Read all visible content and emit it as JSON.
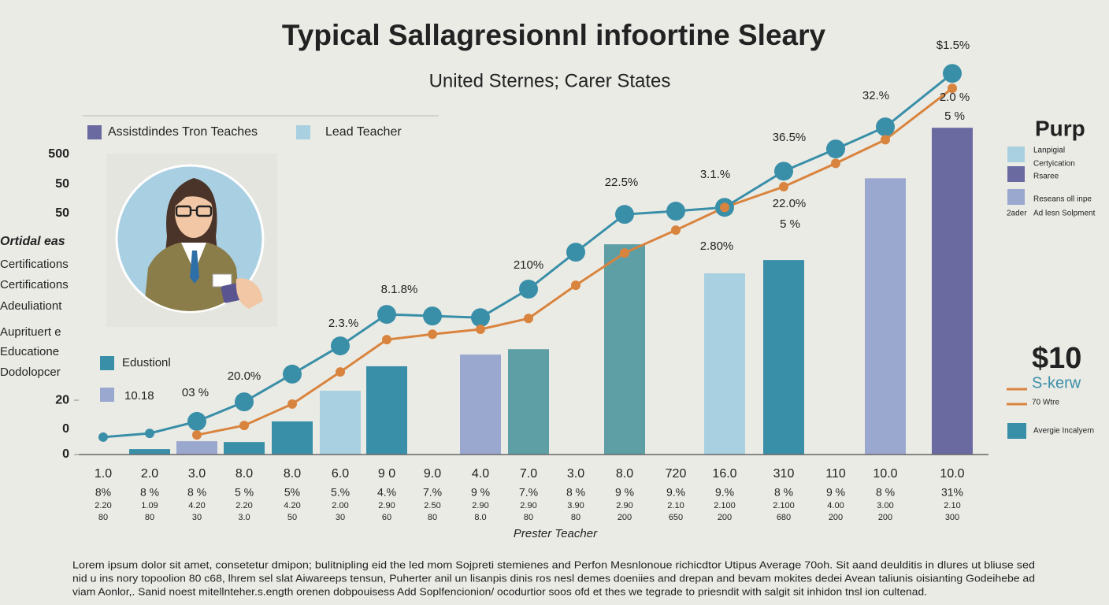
{
  "chart_data": {
    "type": "bar",
    "title": "Typical Sallagresionnl infoortine Sleary",
    "subtitle": "United Sternes; Carer States",
    "legend": [
      {
        "label": "Assistdindes Tron Teaches",
        "color": "#6a6aa0"
      },
      {
        "label": "Lead Teacher",
        "color": "#a9d0e0"
      }
    ],
    "side_labels": [
      "500",
      "50",
      "50",
      "Ortidal eas",
      "Certifications",
      "Certifications",
      "Adeuliationt",
      "Auprituert e",
      "Educatione",
      "Dodolopcer",
      "0"
    ],
    "inset_legend": [
      {
        "label": "Edustionl",
        "color": "#3a8fa8"
      },
      {
        "label": "10.18",
        "color": "#9aa7cf"
      }
    ],
    "annotations": [
      "03 %",
      "20.0%",
      "2.3.%",
      "8.1.8%",
      "210%",
      "22.5%",
      "3.1.%",
      "2.80%",
      "36.5%",
      "22.0%",
      "5 %",
      "32.%",
      "$1.5%",
      "2.0 %",
      "5 %"
    ],
    "categories": [
      "1.0",
      "2.0",
      "3.0",
      "8.0",
      "8.0",
      "6.0",
      "9 0",
      "9.0",
      "4.0",
      "7.0",
      "3.0",
      "8.0",
      "720",
      "16.0",
      "310",
      "110",
      "10.0",
      "10.0"
    ],
    "category_rows": [
      [
        "8%",
        "8 %",
        "8 %",
        "5 %",
        "5%",
        "5.%",
        "4.%",
        "7.%",
        "9 %",
        "7.%",
        "8 %",
        "9 %",
        "9.%",
        "9.%",
        "8 %",
        "9 %",
        "8 %",
        "31%"
      ],
      [
        "2.20",
        "1.09",
        "4.20",
        "2.20",
        "4.20",
        "2.00",
        "2.90",
        "2.50",
        "2.90",
        "2.90",
        "3.90",
        "2.90",
        "2.10",
        "2.100",
        "2.100",
        "4.00",
        "3.00",
        "2.10"
      ],
      [
        "80",
        "80",
        "30",
        "3.0",
        "50",
        "30",
        "60",
        "80",
        "8.0",
        "80",
        "80",
        "200",
        "650",
        "200",
        "680",
        "200",
        "200",
        "300"
      ]
    ],
    "x_label": "Prester Teacher",
    "values": [
      null,
      2.0,
      4.9,
      4.6,
      12.2,
      23.5,
      32.5,
      null,
      36.8,
      38.8,
      null,
      77.4,
      null,
      66.7,
      71.6,
      null,
      101.7,
      120.3
    ],
    "bar_colors": [
      null,
      "#3a8fa8",
      "#9aa7cf",
      "#3a8fa8",
      "#3a8fa8",
      "#a9d0e0",
      "#3a8fa8",
      null,
      "#9aa7cf",
      "#5e9fa6",
      null,
      "#5e9fa6",
      null,
      "#a9d0e0",
      "#3a8fa8",
      null,
      "#9aa7cf",
      "#6a6aa0"
    ],
    "lines": [
      {
        "color": "#3a8fa8",
        "values": [
          6.4,
          7.8,
          12.2,
          19.4,
          29.6,
          40.0,
          51.6,
          51.0,
          50.4,
          60.9,
          74.5,
          88.4,
          89.6,
          91.0,
          104.3,
          112.5,
          120.6,
          140.3
        ]
      },
      {
        "color": "#d9843e",
        "values": [
          null,
          null,
          7.2,
          10.7,
          18.6,
          30.4,
          42.3,
          44.3,
          46.1,
          50.1,
          62.3,
          74.2,
          82.6,
          91.0,
          98.6,
          107.2,
          115.9,
          134.8
        ]
      }
    ],
    "ylim": [
      0,
      145
    ],
    "yticks": [
      0,
      20
    ],
    "right_panel": {
      "heading": "Purp",
      "items": [
        {
          "color": "#a9d0e0",
          "texts": [
            "Lanpigial",
            "Certyication",
            "Rsaree"
          ]
        },
        {
          "color": "#6a6aa0",
          "texts": []
        },
        {
          "color": "#9aa7cf",
          "texts": [
            "Reseans oll inpe",
            "2ader",
            "Ad lesn Solpment"
          ]
        }
      ],
      "big_value": "$10",
      "sub": "S-kerw",
      "line_items": [
        {
          "color": "#d9843e",
          "label": null
        },
        {
          "color": "#d9843e",
          "label": "70 Wtre"
        }
      ],
      "last_item": {
        "color": "#3a8fa8",
        "label": "Avergie Incalyern"
      }
    },
    "footer": [
      "Lorem ipsum  dolor sit amet, consetetur dmipon; bulitnipling eid the led mom Sojpreti stemienes and Perfon Mesnlonoue richicdtor Utipus Average 70oh. Sit aand deulditis in  dlures ut bliuse sed",
      "nid u ins nory topoolion 80 c68, lhrem sel slat Aiwareeps tensun, Puherter anil un lisanpis dinis ros nesl demes doeniies and drepan and bevam mokites dedei Avean taliunis oisianting Godeihebe ad",
      "viam Aonlor,. Sanid noest mitellnteher.s.ength orenen dobpouisess Add Soplfencionion/ ocodurtior soos ofd et thes we tegrade to priesndit with salgit sit inhidon tnsl ion cultenad."
    ]
  }
}
